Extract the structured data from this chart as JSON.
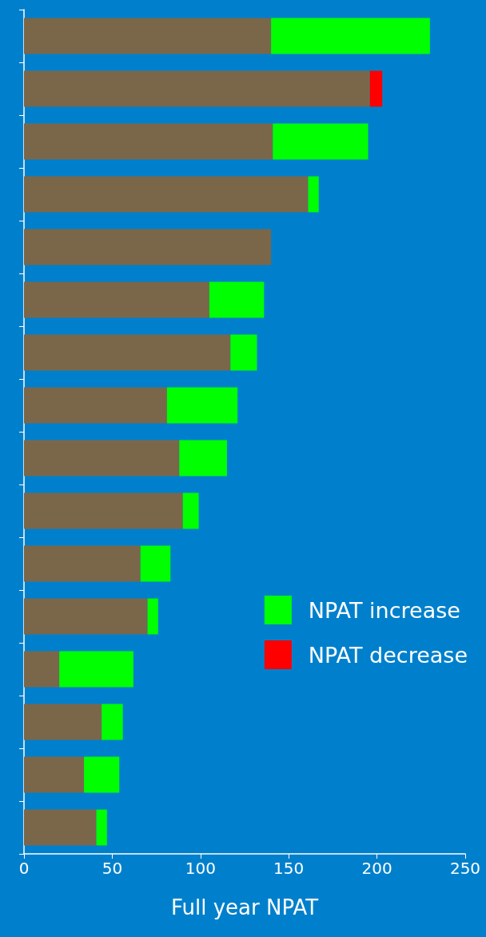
{
  "chart_data": {
    "type": "bar",
    "orientation": "horizontal",
    "stacked": true,
    "xlabel": "Full year NPAT",
    "categories": [
      null,
      null,
      null,
      null,
      null,
      null,
      null,
      null,
      null,
      null,
      null,
      null,
      null,
      null,
      null,
      null
    ],
    "series": [
      {
        "color": "#7a674a",
        "values": [
          140,
          196,
          141,
          161,
          140,
          105,
          117,
          81,
          88,
          90,
          66,
          70,
          20,
          44,
          34,
          41
        ]
      },
      {
        "name": "NPAT increase",
        "color": "#00ff00",
        "values": [
          90,
          null,
          54,
          6,
          null,
          31,
          15,
          40,
          27,
          9,
          17,
          6,
          42,
          12,
          20,
          6
        ]
      },
      {
        "name": "NPAT decrease",
        "color": "#ff0000",
        "values": [
          null,
          7,
          null,
          null,
          null,
          null,
          null,
          null,
          null,
          null,
          null,
          null,
          null,
          null,
          null,
          null
        ]
      }
    ],
    "xlim": [
      0,
      250
    ],
    "xticks": [
      0,
      50,
      100,
      150,
      200,
      250
    ],
    "grid": false,
    "legend": "right"
  }
}
